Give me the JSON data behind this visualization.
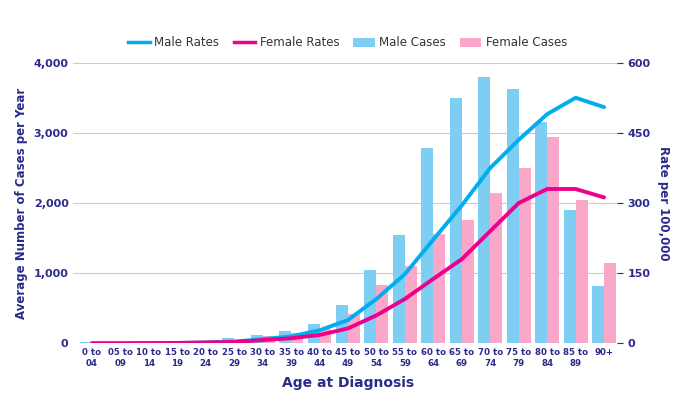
{
  "age_groups": [
    "0 to\n04",
    "05 to\n09",
    "10 to\n14",
    "15 to\n19",
    "20 to\n24",
    "25 to\n29",
    "30 to\n34",
    "35 to\n39",
    "40 to\n44",
    "45 to\n49",
    "50 to\n54",
    "55 to\n59",
    "60 to\n64",
    "65 to\n69",
    "70 to\n74",
    "75 to\n79",
    "80 to\n84",
    "85 to\n89",
    "90+"
  ],
  "male_cases": [
    15,
    15,
    15,
    15,
    20,
    75,
    120,
    175,
    270,
    550,
    1050,
    1540,
    2780,
    3500,
    3800,
    3620,
    3160,
    1900,
    820
  ],
  "female_cases": [
    15,
    15,
    15,
    15,
    18,
    45,
    100,
    155,
    200,
    420,
    830,
    1110,
    1560,
    1760,
    2150,
    2500,
    2940,
    2050,
    1150
  ],
  "male_rates": [
    0.3,
    0.3,
    0.5,
    1,
    2,
    4,
    9,
    15,
    28,
    50,
    95,
    148,
    222,
    295,
    375,
    435,
    490,
    525,
    505
  ],
  "female_rates": [
    0.3,
    0.3,
    0.5,
    1,
    2,
    3,
    7,
    11,
    18,
    32,
    60,
    95,
    138,
    180,
    240,
    300,
    330,
    330,
    312
  ],
  "male_cases_color": "#7ECEF4",
  "female_cases_color": "#F9A8C9",
  "male_rates_color": "#00AEEF",
  "female_rates_color": "#EC008C",
  "xlabel": "Age at Diagnosis",
  "ylabel_left": "Average Number of Cases per Year",
  "ylabel_right": "Rate per 100,000",
  "ylim_left": [
    0,
    4000
  ],
  "ylim_right": [
    0,
    600
  ],
  "yticks_left": [
    0,
    1000,
    2000,
    3000,
    4000
  ],
  "yticks_right": [
    0,
    150,
    300,
    450,
    600
  ],
  "legend_labels": [
    "Male Rates",
    "Female Rates",
    "Male Cases",
    "Female Cases"
  ],
  "axis_label_color": "#2B2B8C",
  "tick_color": "#555555",
  "bar_width": 0.42,
  "background_color": "#FFFFFF",
  "grid_color": "#CCCCCC"
}
